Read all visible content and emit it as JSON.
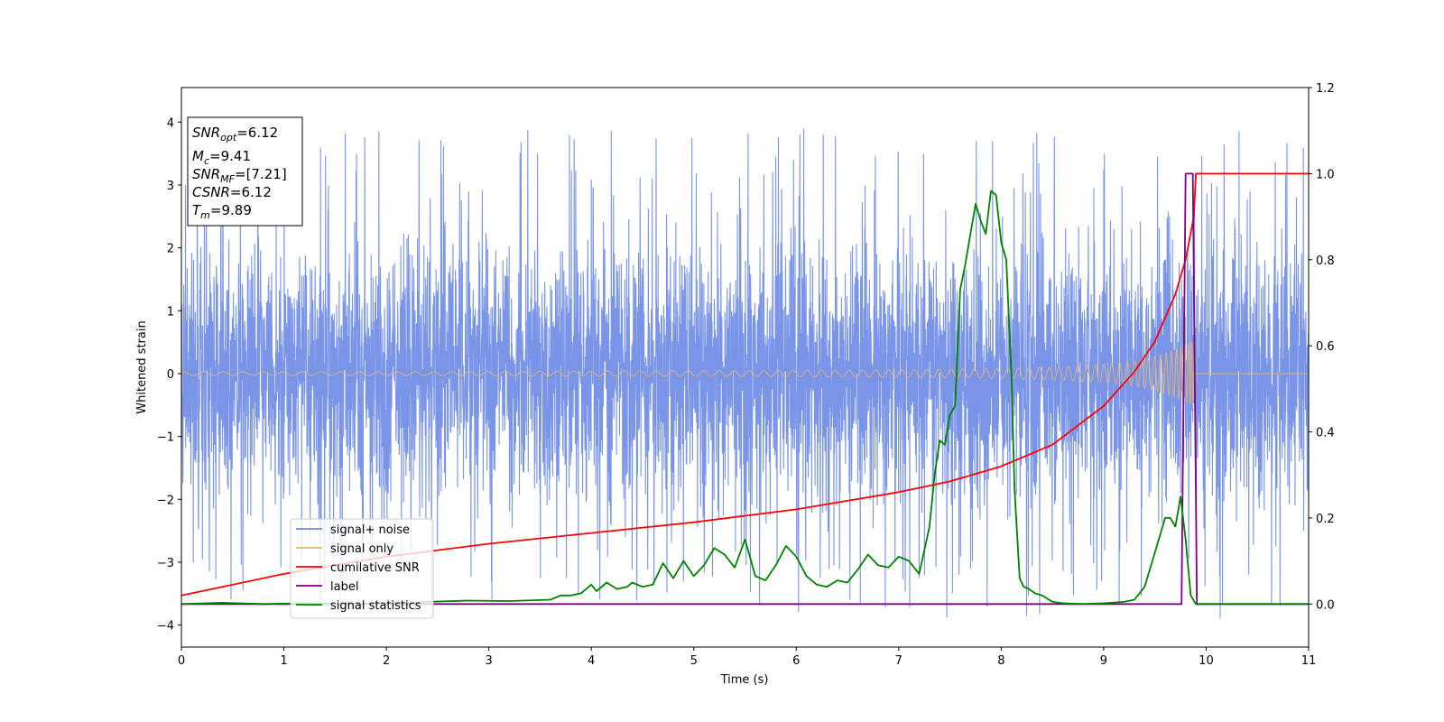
{
  "chart_data": {
    "type": "line",
    "xlabel": "Time (s)",
    "ylabel": "Whitened strain",
    "xlim": [
      0,
      11
    ],
    "ylim_left": [
      -4.35,
      4.55
    ],
    "ylim_right": [
      -0.1,
      1.2
    ],
    "x_ticks": [
      "0",
      "1",
      "2",
      "3",
      "4",
      "5",
      "6",
      "7",
      "8",
      "9",
      "10",
      "11"
    ],
    "y_ticks_left": [
      "−4",
      "−3",
      "−2",
      "−1",
      "0",
      "1",
      "2",
      "3",
      "4"
    ],
    "y_ticks_right": [
      "0.0",
      "0.2",
      "0.4",
      "0.6",
      "0.8",
      "1.0",
      "1.2"
    ],
    "grid": false,
    "legend_position": "lower-left",
    "series": [
      {
        "name": "signal+ noise",
        "axis": "left",
        "color": "#6b8ae6",
        "kind": "noise",
        "envelope": {
          "typical_amplitude": 1.8,
          "max": 4.17,
          "min": -3.92
        }
      },
      {
        "name": "signal only",
        "axis": "left",
        "color": "#e8b46c",
        "kind": "chirp",
        "envelope": {
          "x": [
            0,
            2,
            4,
            6,
            7,
            8,
            8.5,
            9,
            9.3,
            9.5,
            9.7,
            9.85,
            9.89
          ],
          "amplitude": [
            0.03,
            0.03,
            0.04,
            0.05,
            0.06,
            0.08,
            0.1,
            0.15,
            0.2,
            0.27,
            0.38,
            0.5,
            0.55
          ]
        },
        "end_x": 9.89
      },
      {
        "name": "cumilative SNR",
        "axis": "right",
        "color": "#ff0000",
        "x": [
          0,
          1,
          2,
          3,
          4,
          5,
          6,
          7,
          7.5,
          8,
          8.5,
          9,
          9.3,
          9.5,
          9.7,
          9.8,
          9.88,
          9.9,
          10,
          11
        ],
        "y": [
          0.02,
          0.07,
          0.11,
          0.14,
          0.165,
          0.19,
          0.22,
          0.26,
          0.285,
          0.32,
          0.37,
          0.46,
          0.54,
          0.61,
          0.72,
          0.8,
          0.9,
          1.0,
          1.0,
          1.0
        ]
      },
      {
        "name": "label",
        "axis": "right",
        "color": "#800080",
        "x": [
          0,
          9.76,
          9.8,
          9.87,
          9.91,
          11
        ],
        "y": [
          0,
          0,
          1,
          1,
          0,
          0
        ]
      },
      {
        "name": "signal statistics",
        "axis": "right",
        "color": "#008000",
        "x": [
          0,
          0.4,
          0.8,
          1.2,
          1.6,
          2,
          2.4,
          2.8,
          3.2,
          3.6,
          3.7,
          3.8,
          3.9,
          4.0,
          4.05,
          4.15,
          4.25,
          4.35,
          4.4,
          4.5,
          4.6,
          4.7,
          4.8,
          4.9,
          5.0,
          5.1,
          5.2,
          5.3,
          5.4,
          5.5,
          5.6,
          5.7,
          5.8,
          5.9,
          6.0,
          6.1,
          6.2,
          6.3,
          6.4,
          6.5,
          6.6,
          6.7,
          6.8,
          6.9,
          7.0,
          7.1,
          7.2,
          7.3,
          7.35,
          7.4,
          7.45,
          7.5,
          7.55,
          7.6,
          7.65,
          7.7,
          7.75,
          7.8,
          7.85,
          7.9,
          7.95,
          8.0,
          8.05,
          8.1,
          8.13,
          8.18,
          8.22,
          8.27,
          8.33,
          8.4,
          8.5,
          8.6,
          8.8,
          9.0,
          9.2,
          9.3,
          9.4,
          9.5,
          9.6,
          9.65,
          9.7,
          9.75,
          9.8,
          9.85,
          9.9,
          10.0,
          10.5,
          11.0
        ],
        "y": [
          0.0,
          0.003,
          0.0,
          0.002,
          0.0,
          0.002,
          0.005,
          0.008,
          0.007,
          0.01,
          0.02,
          0.02,
          0.025,
          0.045,
          0.03,
          0.05,
          0.035,
          0.04,
          0.05,
          0.04,
          0.045,
          0.095,
          0.06,
          0.1,
          0.065,
          0.09,
          0.13,
          0.115,
          0.085,
          0.15,
          0.065,
          0.055,
          0.09,
          0.135,
          0.11,
          0.065,
          0.045,
          0.04,
          0.055,
          0.05,
          0.08,
          0.115,
          0.09,
          0.085,
          0.11,
          0.1,
          0.07,
          0.18,
          0.3,
          0.38,
          0.37,
          0.44,
          0.46,
          0.73,
          0.79,
          0.86,
          0.93,
          0.89,
          0.86,
          0.96,
          0.95,
          0.84,
          0.8,
          0.53,
          0.27,
          0.06,
          0.04,
          0.035,
          0.025,
          0.02,
          0.005,
          0.002,
          0.0,
          0.002,
          0.005,
          0.01,
          0.04,
          0.12,
          0.2,
          0.2,
          0.18,
          0.25,
          0.15,
          0.02,
          0.0,
          0.0,
          0.0,
          0.0
        ]
      }
    ],
    "annotation": {
      "lines": [
        {
          "var": "SNR",
          "sub": "opt",
          "value": "=6.12"
        },
        {
          "var": "M",
          "sub": "c",
          "value": "=9.41"
        },
        {
          "var": "SNR",
          "sub": "MF",
          "value": "=[7.21]"
        },
        {
          "var": "CSNR",
          "sub": "",
          "value": "=6.12"
        },
        {
          "var": "T",
          "sub": "m",
          "value": "=9.89"
        }
      ]
    }
  }
}
